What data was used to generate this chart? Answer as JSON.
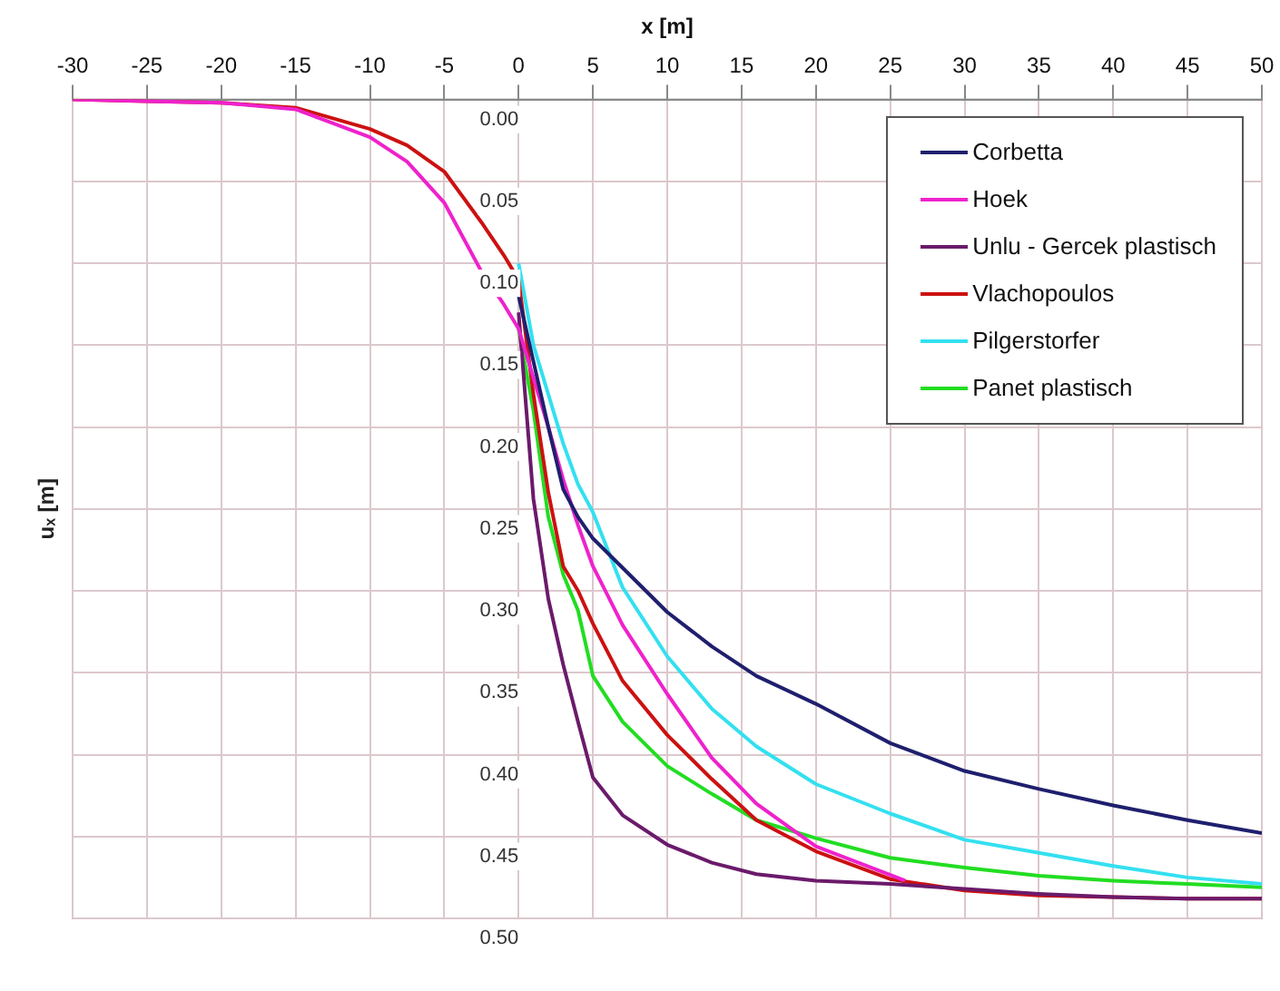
{
  "chart_data": {
    "type": "line",
    "xlabel": "x [m]",
    "ylabel": "uₓ [m]",
    "x": [
      -30,
      -25,
      -20,
      -15,
      -10,
      -7.5,
      -5,
      -2.5,
      -1,
      0,
      1,
      2,
      3,
      4,
      5,
      7,
      10,
      13,
      16,
      20,
      25,
      30,
      35,
      40,
      45,
      50
    ],
    "xlim": [
      -30,
      50
    ],
    "xticks": [
      -30,
      -25,
      -20,
      -15,
      -10,
      -5,
      0,
      5,
      10,
      15,
      20,
      25,
      30,
      35,
      40,
      45,
      50
    ],
    "ylim": [
      0.5,
      0
    ],
    "yticks": [
      {
        "value": 0,
        "label": "0.00"
      },
      {
        "value": 0.05,
        "label": "0.05"
      },
      {
        "value": 0.1,
        "label": "0.10"
      },
      {
        "value": 0.15,
        "label": "0.15"
      },
      {
        "value": 0.2,
        "label": "0.20"
      },
      {
        "value": 0.25,
        "label": "0.25"
      },
      {
        "value": 0.3,
        "label": "0.30"
      },
      {
        "value": 0.35,
        "label": "0.35"
      },
      {
        "value": 0.4,
        "label": "0.40"
      },
      {
        "value": 0.45,
        "label": "0.45"
      },
      {
        "value": 0.5,
        "label": "0.50"
      }
    ],
    "grid": true,
    "legend": "top right",
    "marker": "none",
    "line_style": "solid",
    "series": [
      {
        "name": "Corbetta",
        "color": "#1f1f6e",
        "values": [
          null,
          null,
          null,
          null,
          null,
          null,
          null,
          null,
          null,
          0.12,
          0.16,
          0.2,
          0.238,
          0.255,
          0.268,
          0.286,
          0.313,
          0.334,
          0.352,
          0.369,
          0.393,
          0.41,
          0.421,
          0.431,
          0.44,
          0.448
        ]
      },
      {
        "name": "Hoek",
        "color": "#ee22cc",
        "x": [
          -30,
          -25,
          -20,
          -15,
          -10,
          -7.5,
          -5,
          -2.5,
          -1,
          0,
          1,
          2,
          3,
          4,
          5,
          7,
          10,
          13,
          16,
          20,
          26
        ],
        "values": [
          0,
          0.001,
          0.002,
          0.006,
          0.023,
          0.038,
          0.063,
          0.105,
          0.125,
          0.14,
          0.17,
          0.2,
          0.232,
          0.26,
          0.285,
          0.321,
          0.363,
          0.402,
          0.43,
          0.456,
          0.477
        ]
      },
      {
        "name": "Unlu - Gercek plastisch",
        "color": "#6b1a6b",
        "values": [
          null,
          null,
          null,
          null,
          null,
          null,
          null,
          null,
          null,
          0.13,
          0.244,
          0.305,
          0.345,
          0.38,
          0.414,
          0.437,
          0.455,
          0.466,
          0.473,
          0.477,
          0.479,
          0.482,
          0.485,
          0.487,
          0.488,
          0.488
        ]
      },
      {
        "name": "Vlachopoulos",
        "color": "#cc1111",
        "values": [
          0,
          0.001,
          0.002,
          0.005,
          0.018,
          0.028,
          0.044,
          0.075,
          0.095,
          0.11,
          0.18,
          0.24,
          0.285,
          0.3,
          0.32,
          0.355,
          0.388,
          0.415,
          0.44,
          0.459,
          0.476,
          0.483,
          0.486,
          0.487,
          0.488,
          0.488
        ]
      },
      {
        "name": "Pilgerstorfer",
        "color": "#33e0f0",
        "values": [
          null,
          null,
          null,
          null,
          null,
          null,
          null,
          null,
          null,
          0.1,
          0.15,
          0.18,
          0.21,
          0.235,
          0.252,
          0.298,
          0.34,
          0.372,
          0.395,
          0.418,
          0.436,
          0.452,
          0.46,
          0.468,
          0.475,
          0.479
        ]
      },
      {
        "name": "Panet plastisch",
        "color": "#22dd22",
        "values": [
          null,
          null,
          null,
          null,
          null,
          null,
          null,
          null,
          null,
          0.14,
          0.19,
          0.255,
          0.29,
          0.312,
          0.352,
          0.38,
          0.407,
          0.424,
          0.44,
          0.451,
          0.463,
          0.469,
          0.474,
          0.477,
          0.479,
          0.481
        ]
      }
    ]
  }
}
